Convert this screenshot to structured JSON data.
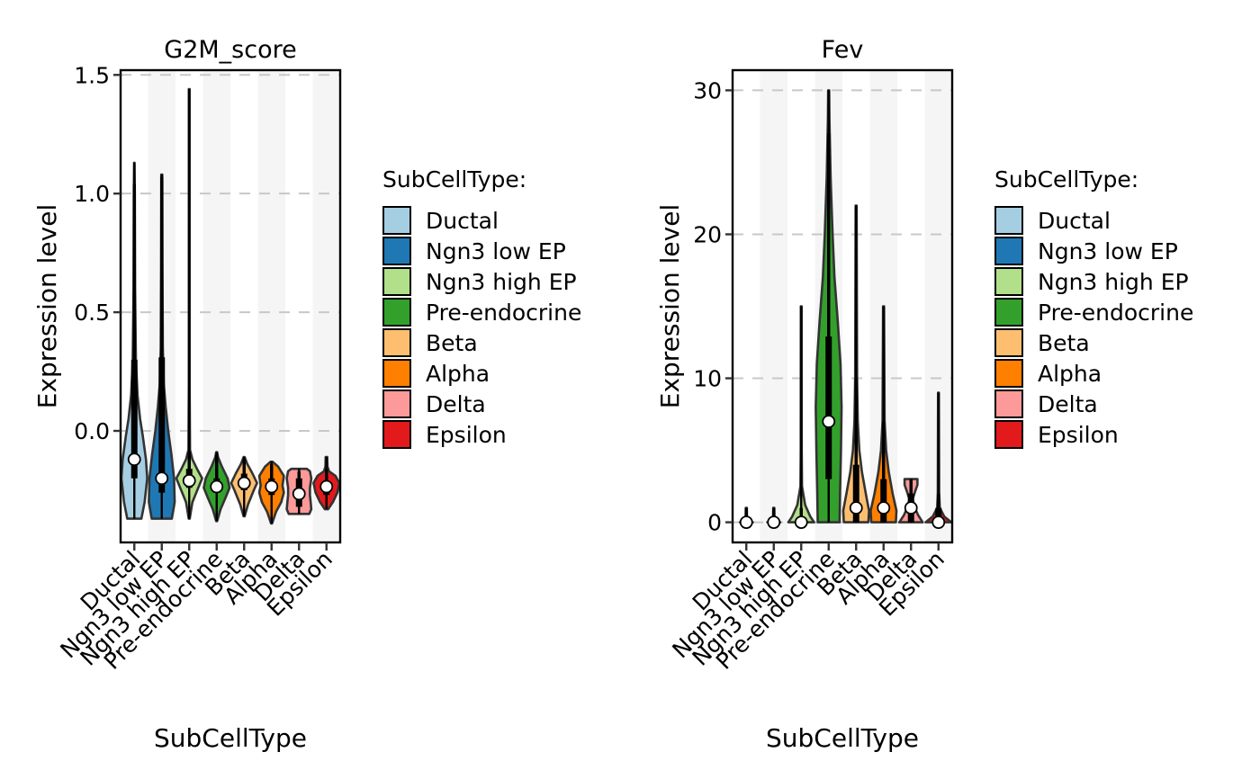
{
  "chart_data": [
    {
      "type": "violin",
      "title": "G2M_score",
      "xlabel": "SubCellType",
      "ylabel": "Expression level",
      "ylim": [
        -0.47,
        1.52
      ],
      "yticks": [
        0.0,
        0.5,
        1.0,
        1.5
      ],
      "ytick_labels": [
        "0.0",
        "0.5",
        "1.0",
        "1.5"
      ],
      "grid": "horizontal-dashed",
      "categories": [
        "Ductal",
        "Ngn3 low EP",
        "Ngn3 high EP",
        "Pre-endocrine",
        "Beta",
        "Alpha",
        "Delta",
        "Epsilon"
      ],
      "violins": [
        {
          "min": -0.37,
          "max": 1.13,
          "q1": -0.2,
          "median": -0.12,
          "q3": 0.3,
          "upper_whisker": 1.04,
          "profile": [
            [
              -0.37,
              0.55
            ],
            [
              -0.3,
              0.8
            ],
            [
              -0.2,
              1.0
            ],
            [
              -0.12,
              0.9
            ],
            [
              -0.02,
              0.65
            ],
            [
              0.05,
              0.45
            ],
            [
              0.15,
              0.25
            ],
            [
              0.3,
              0.12
            ],
            [
              0.6,
              0.06
            ],
            [
              1.0,
              0.04
            ],
            [
              1.13,
              0.02
            ]
          ]
        },
        {
          "min": -0.37,
          "max": 1.08,
          "q1": -0.26,
          "median": -0.2,
          "q3": 0.31,
          "upper_whisker": 1.07,
          "profile": [
            [
              -0.37,
              0.78
            ],
            [
              -0.3,
              1.0
            ],
            [
              -0.2,
              0.95
            ],
            [
              -0.1,
              0.75
            ],
            [
              0.0,
              0.5
            ],
            [
              0.1,
              0.3
            ],
            [
              0.2,
              0.15
            ],
            [
              0.35,
              0.08
            ],
            [
              0.7,
              0.05
            ],
            [
              1.08,
              0.04
            ]
          ]
        },
        {
          "min": -0.37,
          "max": 1.44,
          "q1": -0.24,
          "median": -0.21,
          "q3": -0.16,
          "upper_whisker": -0.09,
          "profile": [
            [
              -0.37,
              0.04
            ],
            [
              -0.3,
              0.25
            ],
            [
              -0.24,
              0.7
            ],
            [
              -0.2,
              1.0
            ],
            [
              -0.16,
              0.6
            ],
            [
              -0.12,
              0.25
            ],
            [
              -0.08,
              0.06
            ],
            [
              0.2,
              0.03
            ],
            [
              1.44,
              0.03
            ]
          ]
        },
        {
          "min": -0.38,
          "max": -0.09,
          "q1": -0.26,
          "median": -0.235,
          "q3": -0.2,
          "upper_whisker": -0.1,
          "profile": [
            [
              -0.38,
              0.04
            ],
            [
              -0.33,
              0.3
            ],
            [
              -0.28,
              0.7
            ],
            [
              -0.24,
              1.0
            ],
            [
              -0.2,
              0.85
            ],
            [
              -0.15,
              0.4
            ],
            [
              -0.11,
              0.1
            ],
            [
              -0.09,
              0.04
            ]
          ]
        },
        {
          "min": -0.36,
          "max": -0.11,
          "q1": -0.25,
          "median": -0.22,
          "q3": -0.18,
          "upper_whisker": -0.12,
          "profile": [
            [
              -0.36,
              0.04
            ],
            [
              -0.31,
              0.3
            ],
            [
              -0.25,
              0.75
            ],
            [
              -0.22,
              1.0
            ],
            [
              -0.18,
              0.65
            ],
            [
              -0.14,
              0.25
            ],
            [
              -0.11,
              0.04
            ]
          ]
        },
        {
          "min": -0.39,
          "max": -0.13,
          "q1": -0.27,
          "median": -0.235,
          "q3": -0.2,
          "upper_whisker": -0.14,
          "profile": [
            [
              -0.39,
              0.04
            ],
            [
              -0.34,
              0.35
            ],
            [
              -0.3,
              0.75
            ],
            [
              -0.26,
              0.95
            ],
            [
              -0.23,
              0.85
            ],
            [
              -0.19,
              0.95
            ],
            [
              -0.15,
              0.5
            ],
            [
              -0.13,
              0.08
            ]
          ]
        },
        {
          "min": -0.35,
          "max": -0.16,
          "q1": -0.32,
          "median": -0.265,
          "q3": -0.2,
          "upper_whisker": -0.17,
          "profile": [
            [
              -0.35,
              0.8
            ],
            [
              -0.33,
              0.95
            ],
            [
              -0.3,
              0.9
            ],
            [
              -0.27,
              0.85
            ],
            [
              -0.24,
              0.85
            ],
            [
              -0.2,
              0.95
            ],
            [
              -0.17,
              0.85
            ],
            [
              -0.16,
              0.6
            ]
          ]
        },
        {
          "min": -0.33,
          "max": -0.11,
          "q1": -0.27,
          "median": -0.235,
          "q3": -0.21,
          "upper_whisker": -0.16,
          "profile": [
            [
              -0.33,
              0.12
            ],
            [
              -0.3,
              0.5
            ],
            [
              -0.26,
              0.85
            ],
            [
              -0.22,
              1.0
            ],
            [
              -0.19,
              0.7
            ],
            [
              -0.17,
              0.2
            ],
            [
              -0.15,
              0.08
            ],
            [
              -0.11,
              0.06
            ]
          ]
        }
      ],
      "legend": {
        "title": "SubCellType:",
        "position": "right",
        "entries": [
          "Ductal",
          "Ngn3 low EP",
          "Ngn3 high EP",
          "Pre-endocrine",
          "Beta",
          "Alpha",
          "Delta",
          "Epsilon"
        ]
      }
    },
    {
      "type": "violin",
      "title": "Fev",
      "xlabel": "SubCellType",
      "ylabel": "Expression level",
      "ylim": [
        -1.4,
        31.4
      ],
      "yticks": [
        0,
        10,
        20,
        30
      ],
      "ytick_labels": [
        "0",
        "10",
        "20",
        "30"
      ],
      "grid": "horizontal-dashed",
      "categories": [
        "Ductal",
        "Ngn3 low EP",
        "Ngn3 high EP",
        "Pre-endocrine",
        "Beta",
        "Alpha",
        "Delta",
        "Epsilon"
      ],
      "violins": [
        {
          "min": 0,
          "max": 1.0,
          "q1": 0,
          "median": 0,
          "q3": 0,
          "upper_whisker": 1.0,
          "profile": [
            [
              0,
              0.5
            ],
            [
              0.15,
              0.05
            ],
            [
              1.0,
              0.04
            ]
          ]
        },
        {
          "min": 0,
          "max": 1.0,
          "q1": 0,
          "median": 0,
          "q3": 0,
          "upper_whisker": 1.0,
          "profile": [
            [
              0,
              0.5
            ],
            [
              0.15,
              0.05
            ],
            [
              1.0,
              0.04
            ]
          ]
        },
        {
          "min": 0,
          "max": 15.0,
          "q1": 0,
          "median": 0,
          "q3": 0.3,
          "upper_whisker": 1.0,
          "profile": [
            [
              0,
              1.0
            ],
            [
              0.4,
              0.7
            ],
            [
              1.2,
              0.3
            ],
            [
              2.5,
              0.06
            ],
            [
              5,
              0.04
            ],
            [
              15,
              0.03
            ]
          ]
        },
        {
          "min": 0,
          "max": 30.0,
          "q1": 3.0,
          "median": 7.0,
          "q3": 12.9,
          "upper_whisker": 27.0,
          "profile": [
            [
              0,
              0.85
            ],
            [
              2,
              0.88
            ],
            [
              5,
              0.95
            ],
            [
              8,
              1.0
            ],
            [
              11,
              0.92
            ],
            [
              14,
              0.7
            ],
            [
              17,
              0.45
            ],
            [
              20,
              0.3
            ],
            [
              24,
              0.15
            ],
            [
              28,
              0.06
            ],
            [
              30,
              0.04
            ]
          ]
        },
        {
          "min": 0,
          "max": 22.0,
          "q1": 0,
          "median": 1.0,
          "q3": 4.0,
          "upper_whisker": 10.0,
          "profile": [
            [
              0,
              0.95
            ],
            [
              0.8,
              1.0
            ],
            [
              2,
              0.75
            ],
            [
              3.5,
              0.45
            ],
            [
              5,
              0.25
            ],
            [
              7,
              0.13
            ],
            [
              10,
              0.07
            ],
            [
              22,
              0.04
            ]
          ]
        },
        {
          "min": 0,
          "max": 15.0,
          "q1": 0,
          "median": 1.0,
          "q3": 3.0,
          "upper_whisker": 7.0,
          "profile": [
            [
              0,
              0.95
            ],
            [
              0.8,
              1.0
            ],
            [
              2,
              0.7
            ],
            [
              3.5,
              0.4
            ],
            [
              5,
              0.2
            ],
            [
              7,
              0.08
            ],
            [
              15,
              0.04
            ]
          ]
        },
        {
          "min": 0,
          "max": 3.0,
          "q1": 0,
          "median": 1.0,
          "q3": 2.0,
          "upper_whisker": 3.0,
          "profile": [
            [
              0,
              0.9
            ],
            [
              0.5,
              0.55
            ],
            [
              1.0,
              0.3
            ],
            [
              1.6,
              0.12
            ],
            [
              2.1,
              0.3
            ],
            [
              2.6,
              0.5
            ],
            [
              3.0,
              0.5
            ]
          ]
        },
        {
          "min": 0,
          "max": 9.0,
          "q1": 0,
          "median": 0,
          "q3": 1.0,
          "upper_whisker": 2.0,
          "profile": [
            [
              0,
              1.0
            ],
            [
              0.4,
              0.45
            ],
            [
              1.0,
              0.1
            ],
            [
              2.0,
              0.05
            ],
            [
              9.0,
              0.03
            ]
          ]
        }
      ],
      "legend": {
        "title": "SubCellType:",
        "position": "right",
        "entries": [
          "Ductal",
          "Ngn3 low EP",
          "Ngn3 high EP",
          "Pre-endocrine",
          "Beta",
          "Alpha",
          "Delta",
          "Epsilon"
        ]
      }
    }
  ],
  "colors": {
    "Ductal": "#a6cee3",
    "Ngn3 low EP": "#1f78b4",
    "Ngn3 high EP": "#b2df8a",
    "Pre-endocrine": "#33a02c",
    "Beta": "#fdbf6f",
    "Alpha": "#ff7f00",
    "Delta": "#fb9a99",
    "Epsilon": "#e31a1c",
    "band": "#f5f5f5",
    "grid": "#c8c8c8",
    "outline": "#333333"
  }
}
